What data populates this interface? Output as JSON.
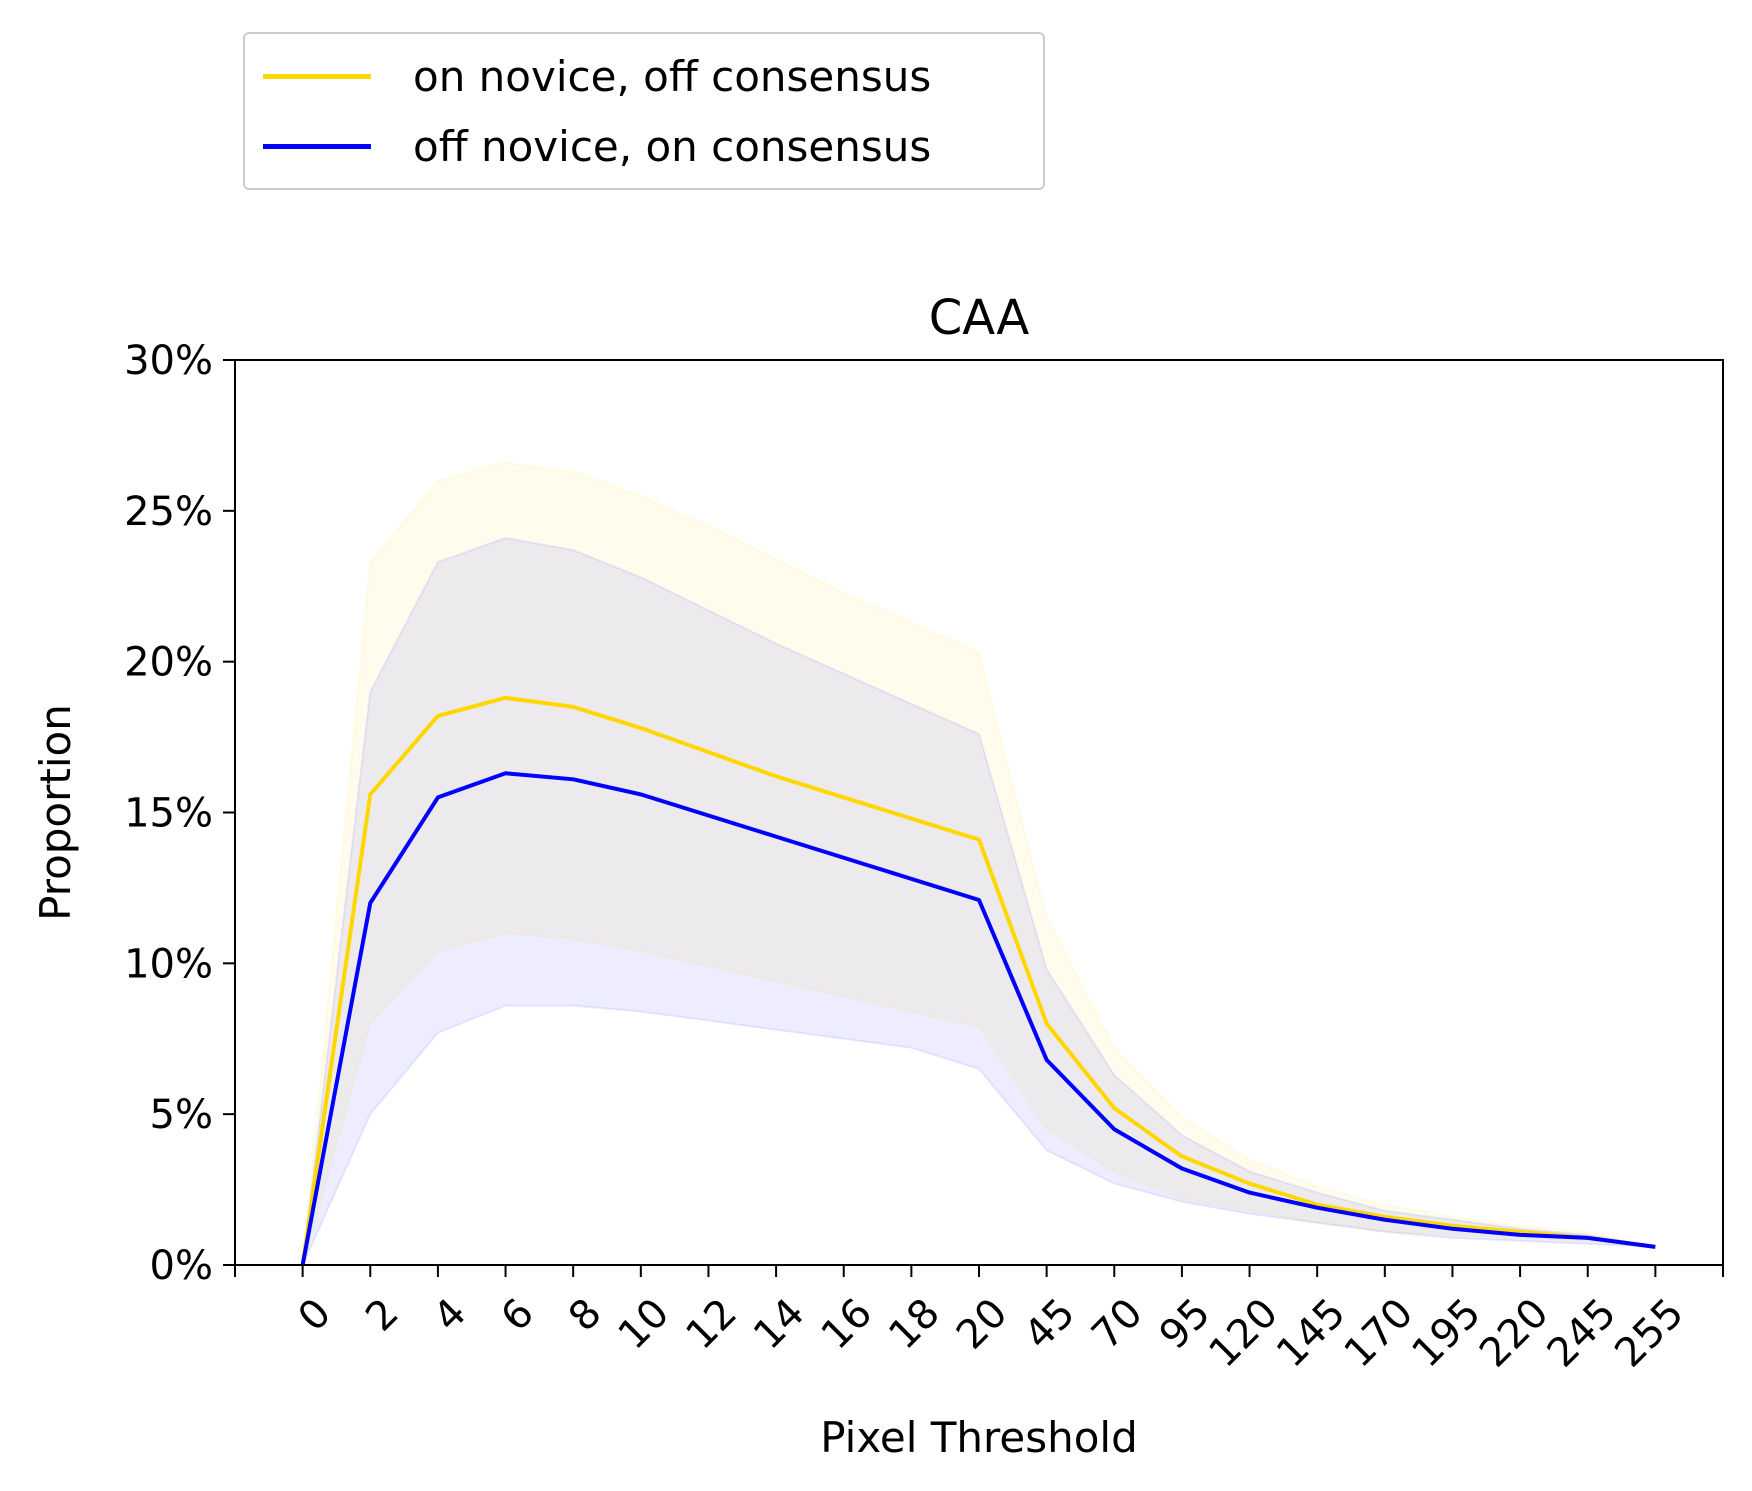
{
  "chart_data": {
    "type": "line",
    "title": "CAA",
    "xlabel": "Pixel Threshold",
    "ylabel": "Proportion",
    "ylim": [
      0,
      0.3
    ],
    "y_ticks": [
      "0%",
      "5%",
      "10%",
      "15%",
      "20%",
      "25%",
      "30%"
    ],
    "y_tick_values": [
      0,
      0.05,
      0.1,
      0.15,
      0.2,
      0.25,
      0.3
    ],
    "categories": [
      "0",
      "2",
      "4",
      "6",
      "8",
      "10",
      "12",
      "14",
      "16",
      "18",
      "20",
      "45",
      "70",
      "95",
      "120",
      "145",
      "170",
      "195",
      "220",
      "245",
      "255"
    ],
    "grid": false,
    "legend_position": "top-left, above plot",
    "series": [
      {
        "name": "on novice, off consensus",
        "color": "#FFD700",
        "values": [
          0.0,
          0.156,
          0.182,
          0.188,
          0.185,
          0.178,
          0.17,
          0.162,
          0.155,
          0.148,
          0.141,
          0.08,
          0.052,
          0.036,
          0.027,
          0.02,
          0.016,
          0.013,
          0.011,
          0.009,
          0.006
        ],
        "band_upper": [
          0.0,
          0.233,
          0.26,
          0.266,
          0.263,
          0.255,
          0.245,
          0.234,
          0.223,
          0.213,
          0.203,
          0.115,
          0.072,
          0.049,
          0.035,
          0.026,
          0.02,
          0.016,
          0.013,
          0.011,
          0.006
        ],
        "band_lower": [
          0.0,
          0.08,
          0.104,
          0.11,
          0.108,
          0.104,
          0.099,
          0.094,
          0.089,
          0.084,
          0.079,
          0.045,
          0.031,
          0.022,
          0.018,
          0.014,
          0.011,
          0.01,
          0.009,
          0.008,
          0.006
        ]
      },
      {
        "name": "off novice, on consensus",
        "color": "#0000FF",
        "values": [
          0.0,
          0.12,
          0.155,
          0.163,
          0.161,
          0.156,
          0.149,
          0.142,
          0.135,
          0.128,
          0.121,
          0.068,
          0.045,
          0.032,
          0.024,
          0.019,
          0.015,
          0.012,
          0.01,
          0.009,
          0.006
        ],
        "band_upper": [
          0.0,
          0.19,
          0.233,
          0.241,
          0.237,
          0.228,
          0.217,
          0.206,
          0.196,
          0.186,
          0.176,
          0.098,
          0.063,
          0.043,
          0.031,
          0.024,
          0.018,
          0.015,
          0.012,
          0.01,
          0.006
        ],
        "band_lower": [
          0.0,
          0.05,
          0.077,
          0.086,
          0.086,
          0.084,
          0.081,
          0.078,
          0.075,
          0.072,
          0.065,
          0.038,
          0.027,
          0.021,
          0.017,
          0.014,
          0.011,
          0.009,
          0.008,
          0.007,
          0.006
        ]
      }
    ]
  },
  "legend": {
    "items": [
      {
        "label": "on novice, off consensus",
        "color": "#FFD700"
      },
      {
        "label": "off novice, on consensus",
        "color": "#0000FF"
      }
    ]
  }
}
